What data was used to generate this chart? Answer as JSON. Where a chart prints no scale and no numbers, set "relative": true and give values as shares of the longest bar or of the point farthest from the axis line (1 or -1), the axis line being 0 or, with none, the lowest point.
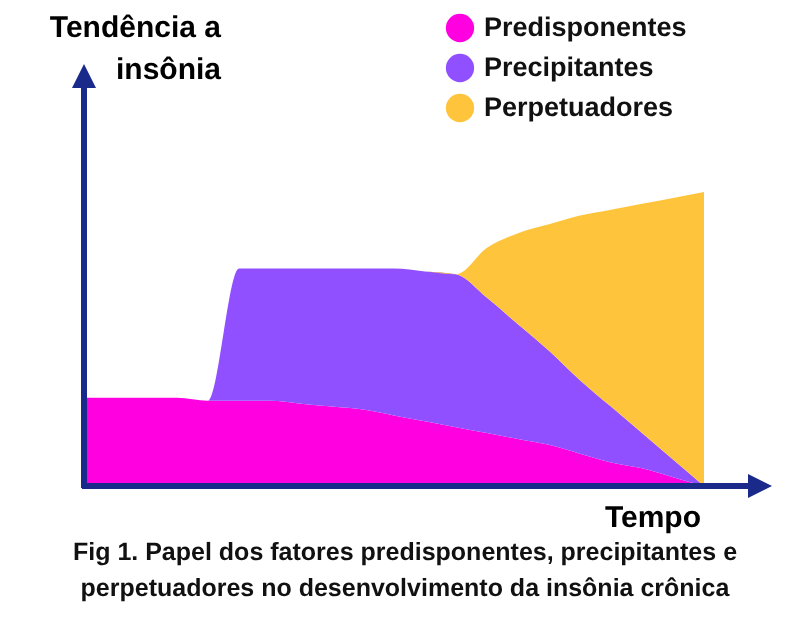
{
  "chart_data": {
    "type": "area",
    "relative": true,
    "stacked": true,
    "xlabel": "Tempo",
    "ylabel": "Tendência a insônia",
    "legend": "top right",
    "categories": [
      null,
      null,
      null,
      null,
      null,
      null,
      null,
      null,
      null,
      null,
      null,
      null,
      null,
      null,
      null,
      null,
      null,
      null,
      null,
      null,
      null
    ],
    "series": [
      {
        "name": "Predisponentes",
        "color": "#ff00e0",
        "values": [
          0.3,
          0.3,
          0.3,
          0.3,
          0.29,
          0.29,
          0.29,
          0.28,
          0.27,
          0.26,
          0.24,
          0.22,
          0.2,
          0.18,
          0.16,
          0.14,
          0.11,
          0.08,
          0.06,
          0.03,
          0
        ]
      },
      {
        "name": "Precipitantes",
        "color": "#9150ff",
        "values": [
          0,
          0,
          0,
          0,
          0,
          0.45,
          0.45,
          0.46,
          0.47,
          0.48,
          0.5,
          0.51,
          0.52,
          0.46,
          0.39,
          0.32,
          0.25,
          0.19,
          0.12,
          0.06,
          0
        ]
      },
      {
        "name": "Perpetuadores",
        "color": "#fec43c",
        "values": [
          0,
          0,
          0,
          0,
          0,
          0,
          0,
          0,
          0,
          0,
          0,
          0,
          0,
          0.17,
          0.31,
          0.43,
          0.56,
          0.67,
          0.78,
          0.89,
          1.0
        ]
      }
    ],
    "annotations": [
      "Fig 1. Papel dos fatores predisponentes, precipitantes e perpetuadores no desenvolvimento da insônia crônica"
    ]
  }
}
